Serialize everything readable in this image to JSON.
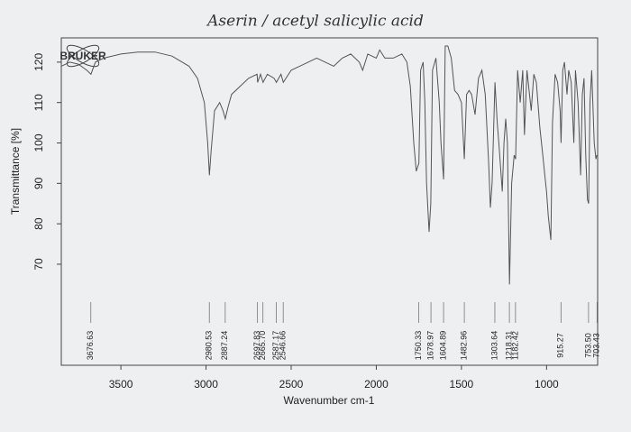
{
  "chart_data": {
    "type": "line",
    "title": "Aserin / acetyl salicylic acid",
    "logo": "BRUKER",
    "x_label": "Wavenumber cm-1",
    "y_label": "Transmittance [%]",
    "color": "#555555",
    "xlim": [
      3850,
      700
    ],
    "ylim": [
      45,
      126
    ],
    "xticks": [
      3500,
      3000,
      2500,
      2000,
      1500,
      1000
    ],
    "yticks": [
      70,
      80,
      90,
      100,
      110,
      120
    ],
    "x": [
      3850,
      3800,
      3750,
      3700,
      3676,
      3650,
      3600,
      3500,
      3400,
      3300,
      3200,
      3100,
      3050,
      3010,
      2990,
      2980,
      2970,
      2950,
      2920,
      2900,
      2887,
      2870,
      2850,
      2800,
      2750,
      2700,
      2697,
      2680,
      2665,
      2640,
      2600,
      2587,
      2560,
      2546,
      2500,
      2450,
      2400,
      2350,
      2300,
      2250,
      2200,
      2150,
      2100,
      2080,
      2050,
      2000,
      1980,
      1950,
      1900,
      1850,
      1820,
      1800,
      1780,
      1765,
      1750,
      1740,
      1725,
      1715,
      1705,
      1690,
      1680,
      1670,
      1650,
      1630,
      1620,
      1605,
      1595,
      1580,
      1560,
      1540,
      1520,
      1500,
      1483,
      1470,
      1455,
      1440,
      1420,
      1400,
      1380,
      1360,
      1340,
      1330,
      1320,
      1303,
      1290,
      1280,
      1260,
      1250,
      1240,
      1230,
      1218,
      1205,
      1190,
      1182,
      1170,
      1155,
      1140,
      1130,
      1115,
      1100,
      1090,
      1075,
      1060,
      1040,
      1020,
      1010,
      1000,
      990,
      980,
      975,
      965,
      950,
      935,
      920,
      915,
      905,
      895,
      880,
      870,
      855,
      840,
      830,
      815,
      800,
      790,
      780,
      770,
      760,
      753,
      745,
      735,
      720,
      710,
      705
    ],
    "values": [
      119,
      120,
      119.5,
      118,
      117,
      120,
      121,
      122,
      122.5,
      122.5,
      121.5,
      119,
      116,
      110,
      100,
      92,
      98,
      108,
      110,
      108,
      106,
      109,
      112,
      114,
      116,
      117,
      115,
      117,
      115,
      117,
      116,
      115,
      117,
      115,
      118,
      119,
      120,
      121,
      120,
      119,
      121,
      122,
      120,
      118,
      122,
      121,
      123,
      121,
      121,
      122,
      120,
      114,
      100,
      93,
      95,
      118,
      120,
      110,
      90,
      78,
      85,
      118,
      121,
      110,
      100,
      91,
      124,
      124,
      121,
      113,
      112,
      110,
      96,
      112,
      113,
      112,
      107,
      116,
      118,
      112,
      95,
      84,
      90,
      115,
      105,
      100,
      88,
      100,
      106,
      100,
      65,
      90,
      97,
      96,
      118,
      110,
      118,
      102,
      118,
      112,
      108,
      117,
      115,
      104,
      96,
      92,
      88,
      82,
      78,
      76,
      105,
      117,
      115,
      108,
      100,
      118,
      120,
      112,
      118,
      115,
      100,
      118,
      110,
      92,
      112,
      116,
      97,
      86,
      85,
      110,
      118,
      100,
      96,
      97
    ],
    "peaks": [
      3676.63,
      2980.53,
      2887.24,
      2697.83,
      2665.7,
      2587.17,
      2546.66,
      1750.33,
      1678.97,
      1604.89,
      1482.96,
      1303.64,
      1218.31,
      1182.42,
      915.27,
      753.5,
      703.43
    ],
    "peak_labels": [
      "3676.63",
      "2980.53",
      "2887.24",
      "2697.83",
      "2665.70",
      "2587.17",
      "2546.66",
      "1750.33",
      "1678.97",
      "1604.89",
      "1482.96",
      "1303.64",
      "1218.31",
      "1182.42",
      "915.27",
      "753.50",
      "703.43"
    ]
  }
}
